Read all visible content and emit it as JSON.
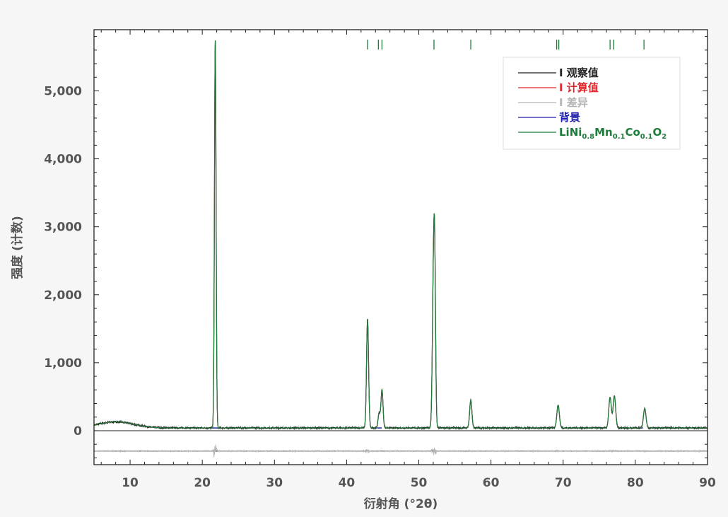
{
  "chart_data": {
    "type": "line",
    "xlabel": "衍射角 (°2θ)",
    "ylabel": "强度 (计数)",
    "xlim": [
      5,
      90
    ],
    "ylim": [
      -500,
      5900
    ],
    "xticks": [
      10,
      20,
      30,
      40,
      50,
      60,
      70,
      80,
      90
    ],
    "yticks": [
      0,
      1000,
      2000,
      3000,
      4000,
      5000
    ],
    "ytick_labels": [
      "0",
      "1,000",
      "2,000",
      "3,000",
      "4,000",
      "5,000"
    ],
    "grid": false,
    "legend_position": "top-right",
    "background_level": 40,
    "difference_offset": -300,
    "peaks": [
      {
        "x": 21.8,
        "y": 5700,
        "width": 0.16
      },
      {
        "x": 42.9,
        "y": 1600,
        "width": 0.2
      },
      {
        "x": 44.5,
        "y": 220,
        "width": 0.2
      },
      {
        "x": 44.9,
        "y": 560,
        "width": 0.2
      },
      {
        "x": 52.0,
        "y": 1800,
        "width": 0.2
      },
      {
        "x": 52.2,
        "y": 2300,
        "width": 0.18
      },
      {
        "x": 57.2,
        "y": 410,
        "width": 0.22
      },
      {
        "x": 69.3,
        "y": 335,
        "width": 0.25
      },
      {
        "x": 76.5,
        "y": 450,
        "width": 0.25
      },
      {
        "x": 77.1,
        "y": 470,
        "width": 0.25
      },
      {
        "x": 81.3,
        "y": 290,
        "width": 0.25
      }
    ],
    "reflection_marks": [
      42.9,
      44.4,
      44.9,
      52.1,
      57.2,
      69.1,
      69.4,
      76.5,
      77.0,
      81.2
    ],
    "series": [
      {
        "name": "I 观察值",
        "color": "#222222",
        "parts": [
          {
            "text": "I 观察值"
          }
        ]
      },
      {
        "name": "I 计算值",
        "color": "#e0262b",
        "parts": [
          {
            "text": "I 计算值"
          }
        ]
      },
      {
        "name": "I 差异",
        "color": "#b4b4b4",
        "parts": [
          {
            "text": "I 差异"
          }
        ]
      },
      {
        "name": "背景",
        "color": "#1c1caa",
        "parts": [
          {
            "text": "背景"
          }
        ]
      },
      {
        "name": "LiNi0.8Mn0.1Co0.1O2",
        "color": "#1e7b3a",
        "parts": [
          {
            "text": "LiNi"
          },
          {
            "text": "0.8",
            "sub": true
          },
          {
            "text": "Mn"
          },
          {
            "text": "0.1",
            "sub": true
          },
          {
            "text": "Co"
          },
          {
            "text": "0.1",
            "sub": true
          },
          {
            "text": "O"
          },
          {
            "text": "2",
            "sub": true
          }
        ]
      }
    ]
  }
}
